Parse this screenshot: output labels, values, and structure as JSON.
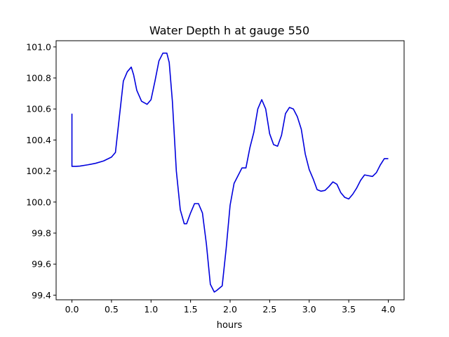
{
  "chart_data": {
    "type": "line",
    "title": "Water Depth h at gauge 550",
    "xlabel": "hours",
    "ylabel": "",
    "xlim": [
      -0.2,
      4.2
    ],
    "ylim": [
      99.37,
      101.04
    ],
    "xticks": [
      0.0,
      0.5,
      1.0,
      1.5,
      2.0,
      2.5,
      3.0,
      3.5,
      4.0
    ],
    "xtick_labels": [
      "0.0",
      "0.5",
      "1.0",
      "1.5",
      "2.0",
      "2.5",
      "3.0",
      "3.5",
      "4.0"
    ],
    "yticks": [
      99.4,
      99.6,
      99.8,
      100.0,
      100.2,
      100.4,
      100.6,
      100.8,
      101.0
    ],
    "ytick_labels": [
      "99.4",
      "99.6",
      "99.8",
      "100.0",
      "100.2",
      "100.4",
      "100.6",
      "100.8",
      "101.0"
    ],
    "grid": false,
    "legend": "none",
    "series": [
      {
        "color": "#0000dd",
        "x": [
          0.0,
          0.0,
          0.05,
          0.1,
          0.2,
          0.3,
          0.4,
          0.5,
          0.55,
          0.6,
          0.65,
          0.7,
          0.75,
          0.78,
          0.82,
          0.88,
          0.95,
          1.0,
          1.05,
          1.1,
          1.15,
          1.2,
          1.23,
          1.27,
          1.32,
          1.37,
          1.42,
          1.45,
          1.5,
          1.55,
          1.6,
          1.65,
          1.7,
          1.75,
          1.8,
          1.83,
          1.9,
          1.95,
          2.0,
          2.05,
          2.1,
          2.15,
          2.2,
          2.25,
          2.3,
          2.35,
          2.4,
          2.45,
          2.5,
          2.55,
          2.6,
          2.65,
          2.7,
          2.75,
          2.8,
          2.85,
          2.9,
          2.95,
          3.0,
          3.05,
          3.1,
          3.15,
          3.2,
          3.25,
          3.3,
          3.35,
          3.4,
          3.45,
          3.5,
          3.55,
          3.6,
          3.65,
          3.7,
          3.75,
          3.8,
          3.85,
          3.9,
          3.95,
          4.0
        ],
        "y": [
          100.57,
          100.23,
          100.23,
          100.232,
          100.24,
          100.25,
          100.265,
          100.29,
          100.32,
          100.55,
          100.78,
          100.84,
          100.87,
          100.82,
          100.72,
          100.65,
          100.63,
          100.66,
          100.78,
          100.91,
          100.96,
          100.96,
          100.9,
          100.65,
          100.2,
          99.95,
          99.86,
          99.86,
          99.93,
          99.99,
          99.99,
          99.93,
          99.73,
          99.47,
          99.42,
          99.43,
          99.46,
          99.7,
          99.98,
          100.12,
          100.17,
          100.22,
          100.22,
          100.35,
          100.45,
          100.6,
          100.66,
          100.6,
          100.44,
          100.37,
          100.36,
          100.43,
          100.57,
          100.61,
          100.6,
          100.55,
          100.47,
          100.31,
          100.21,
          100.15,
          100.08,
          100.07,
          100.075,
          100.1,
          100.13,
          100.115,
          100.06,
          100.03,
          100.02,
          100.05,
          100.09,
          100.14,
          100.175,
          100.17,
          100.165,
          100.19,
          100.24,
          100.28,
          100.28
        ]
      }
    ]
  }
}
